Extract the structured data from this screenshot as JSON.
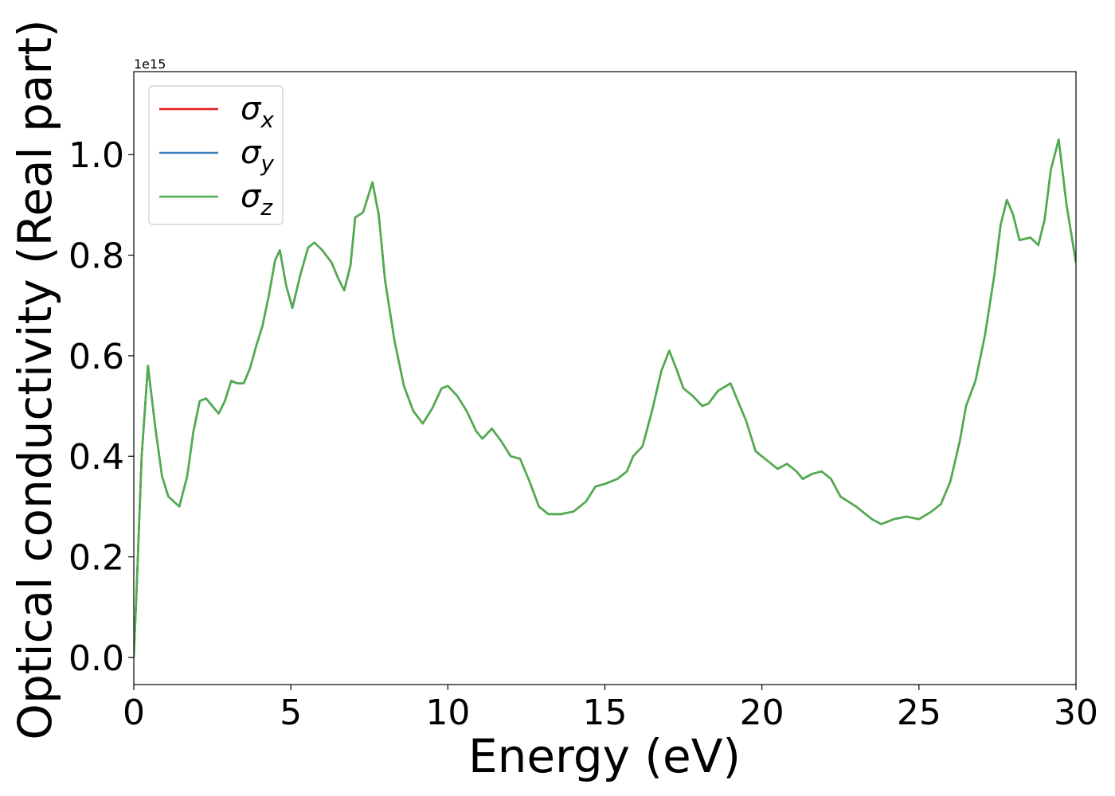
{
  "chart_data": {
    "type": "line",
    "xlabel": "Energy (eV)",
    "ylabel": "Optical conductivity (Real part)",
    "y_offset_label": "1e15",
    "x": [
      0,
      0.1,
      0.25,
      0.45,
      0.7,
      0.9,
      1.1,
      1.45,
      1.7,
      1.9,
      2.1,
      2.3,
      2.5,
      2.7,
      2.9,
      3.1,
      3.3,
      3.5,
      3.7,
      3.9,
      4.1,
      4.3,
      4.5,
      4.65,
      4.85,
      5.05,
      5.3,
      5.55,
      5.75,
      6.0,
      6.3,
      6.5,
      6.7,
      6.9,
      7.05,
      7.3,
      7.6,
      7.8,
      8.0,
      8.3,
      8.6,
      8.9,
      9.2,
      9.5,
      9.8,
      10.0,
      10.3,
      10.6,
      10.9,
      11.1,
      11.4,
      11.7,
      12.0,
      12.3,
      12.6,
      12.9,
      13.2,
      13.6,
      14.0,
      14.4,
      14.7,
      15.0,
      15.4,
      15.7,
      15.9,
      16.2,
      16.5,
      16.8,
      17.05,
      17.3,
      17.5,
      17.8,
      18.1,
      18.3,
      18.6,
      19.0,
      19.3,
      19.5,
      19.8,
      20.2,
      20.5,
      20.8,
      21.1,
      21.3,
      21.6,
      21.9,
      22.2,
      22.5,
      23.0,
      23.5,
      23.8,
      24.2,
      24.6,
      25.0,
      25.4,
      25.7,
      26.0,
      26.3,
      26.5,
      26.8,
      27.1,
      27.4,
      27.6,
      27.8,
      28.0,
      28.2,
      28.55,
      28.8,
      29.0,
      29.2,
      29.45,
      29.7,
      30
    ],
    "series": [
      {
        "name": "σx",
        "color": "#e41a1c",
        "values": [
          0.0,
          0.15,
          0.4,
          0.58,
          0.45,
          0.36,
          0.32,
          0.3,
          0.36,
          0.45,
          0.51,
          0.515,
          0.5,
          0.485,
          0.51,
          0.55,
          0.545,
          0.545,
          0.575,
          0.62,
          0.66,
          0.72,
          0.79,
          0.81,
          0.74,
          0.695,
          0.76,
          0.815,
          0.825,
          0.81,
          0.785,
          0.755,
          0.73,
          0.78,
          0.875,
          0.885,
          0.945,
          0.88,
          0.75,
          0.63,
          0.54,
          0.49,
          0.465,
          0.495,
          0.535,
          0.54,
          0.52,
          0.49,
          0.45,
          0.435,
          0.455,
          0.43,
          0.4,
          0.395,
          0.35,
          0.3,
          0.285,
          0.285,
          0.29,
          0.31,
          0.34,
          0.345,
          0.355,
          0.37,
          0.4,
          0.42,
          0.49,
          0.57,
          0.61,
          0.57,
          0.535,
          0.52,
          0.5,
          0.505,
          0.53,
          0.545,
          0.5,
          0.47,
          0.41,
          0.39,
          0.375,
          0.385,
          0.37,
          0.355,
          0.365,
          0.37,
          0.355,
          0.32,
          0.3,
          0.275,
          0.265,
          0.275,
          0.28,
          0.275,
          0.29,
          0.305,
          0.35,
          0.43,
          0.5,
          0.55,
          0.64,
          0.76,
          0.86,
          0.91,
          0.88,
          0.83,
          0.835,
          0.82,
          0.87,
          0.97,
          1.03,
          0.9,
          0.785
        ]
      },
      {
        "name": "σy",
        "color": "#377eb8",
        "values": [
          0.0,
          0.15,
          0.4,
          0.58,
          0.45,
          0.36,
          0.32,
          0.3,
          0.36,
          0.45,
          0.51,
          0.515,
          0.5,
          0.485,
          0.51,
          0.55,
          0.545,
          0.545,
          0.575,
          0.62,
          0.66,
          0.72,
          0.79,
          0.81,
          0.74,
          0.695,
          0.76,
          0.815,
          0.825,
          0.81,
          0.785,
          0.755,
          0.73,
          0.78,
          0.875,
          0.885,
          0.945,
          0.88,
          0.75,
          0.63,
          0.54,
          0.49,
          0.465,
          0.495,
          0.535,
          0.54,
          0.52,
          0.49,
          0.45,
          0.435,
          0.455,
          0.43,
          0.4,
          0.395,
          0.35,
          0.3,
          0.285,
          0.285,
          0.29,
          0.31,
          0.34,
          0.345,
          0.355,
          0.37,
          0.4,
          0.42,
          0.49,
          0.57,
          0.61,
          0.57,
          0.535,
          0.52,
          0.5,
          0.505,
          0.53,
          0.545,
          0.5,
          0.47,
          0.41,
          0.39,
          0.375,
          0.385,
          0.37,
          0.355,
          0.365,
          0.37,
          0.355,
          0.32,
          0.3,
          0.275,
          0.265,
          0.275,
          0.28,
          0.275,
          0.29,
          0.305,
          0.35,
          0.43,
          0.5,
          0.55,
          0.64,
          0.76,
          0.86,
          0.91,
          0.88,
          0.83,
          0.835,
          0.82,
          0.87,
          0.97,
          1.03,
          0.9,
          0.785
        ]
      },
      {
        "name": "σz",
        "color": "#4daf4a",
        "values": [
          0.0,
          0.15,
          0.4,
          0.58,
          0.45,
          0.36,
          0.32,
          0.3,
          0.36,
          0.45,
          0.51,
          0.515,
          0.5,
          0.485,
          0.51,
          0.55,
          0.545,
          0.545,
          0.575,
          0.62,
          0.66,
          0.72,
          0.79,
          0.81,
          0.74,
          0.695,
          0.76,
          0.815,
          0.825,
          0.81,
          0.785,
          0.755,
          0.73,
          0.78,
          0.875,
          0.885,
          0.945,
          0.88,
          0.75,
          0.63,
          0.54,
          0.49,
          0.465,
          0.495,
          0.535,
          0.54,
          0.52,
          0.49,
          0.45,
          0.435,
          0.455,
          0.43,
          0.4,
          0.395,
          0.35,
          0.3,
          0.285,
          0.285,
          0.29,
          0.31,
          0.34,
          0.345,
          0.355,
          0.37,
          0.4,
          0.42,
          0.49,
          0.57,
          0.61,
          0.57,
          0.535,
          0.52,
          0.5,
          0.505,
          0.53,
          0.545,
          0.5,
          0.47,
          0.41,
          0.39,
          0.375,
          0.385,
          0.37,
          0.355,
          0.365,
          0.37,
          0.355,
          0.32,
          0.3,
          0.275,
          0.265,
          0.275,
          0.28,
          0.275,
          0.29,
          0.305,
          0.35,
          0.43,
          0.5,
          0.55,
          0.64,
          0.76,
          0.86,
          0.91,
          0.88,
          0.83,
          0.835,
          0.82,
          0.87,
          0.97,
          1.03,
          0.9,
          0.785
        ]
      }
    ],
    "xlim": [
      0,
      30
    ],
    "xticks": [
      0,
      5,
      10,
      15,
      20,
      25,
      30
    ],
    "ylim": [
      -0.054,
      1.165
    ],
    "yticks": [
      {
        "value": 0,
        "label": "0.0"
      },
      0.2,
      0.4,
      0.6,
      0.8,
      {
        "value": 1,
        "label": "1.0"
      }
    ],
    "grid": false,
    "legend": "upper left"
  }
}
